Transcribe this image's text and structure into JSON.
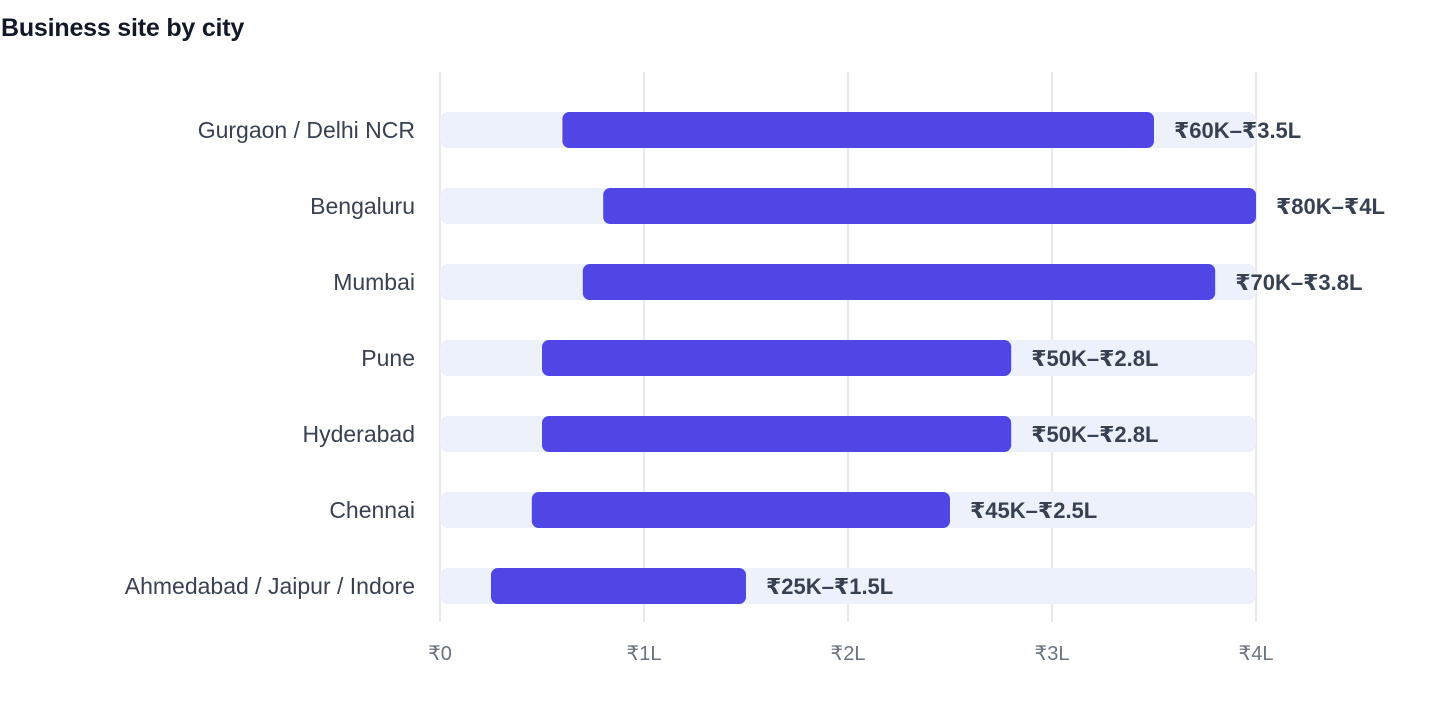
{
  "chart_data": {
    "type": "bar",
    "orientation": "horizontal",
    "style": "range",
    "title": "Business site by city",
    "xlabel": "",
    "ylabel": "",
    "x_unit": "₹ lakh",
    "xlim": [
      0,
      4
    ],
    "xticks": [
      {
        "value": 0,
        "label": "₹0"
      },
      {
        "value": 1,
        "label": "₹1L"
      },
      {
        "value": 2,
        "label": "₹2L"
      },
      {
        "value": 3,
        "label": "₹3L"
      },
      {
        "value": 4,
        "label": "₹4L"
      }
    ],
    "grid": true,
    "colors": {
      "range_bar": "#4f46e5",
      "track": "#edf1fc",
      "grid": "#dfe2e8"
    },
    "categories": [
      "Gurgaon / Delhi NCR",
      "Bengaluru",
      "Mumbai",
      "Pune",
      "Hyderabad",
      "Chennai",
      "Ahmedabad / Jaipur / Indore"
    ],
    "ranges": [
      {
        "min": 0.6,
        "max": 3.5,
        "label": "₹60K–₹3.5L"
      },
      {
        "min": 0.8,
        "max": 4.0,
        "label": "₹80K–₹4L"
      },
      {
        "min": 0.7,
        "max": 3.8,
        "label": "₹70K–₹3.8L"
      },
      {
        "min": 0.5,
        "max": 2.8,
        "label": "₹50K–₹2.8L"
      },
      {
        "min": 0.5,
        "max": 2.8,
        "label": "₹50K–₹2.8L"
      },
      {
        "min": 0.45,
        "max": 2.5,
        "label": "₹45K–₹2.5L"
      },
      {
        "min": 0.25,
        "max": 1.5,
        "label": "₹25K–₹1.5L"
      }
    ]
  }
}
